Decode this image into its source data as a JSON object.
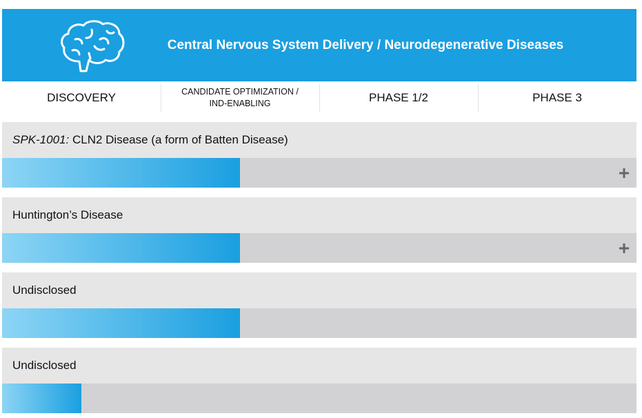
{
  "header": {
    "title": "Central Nervous System Delivery / Neurodegenerative Diseases"
  },
  "stages": [
    "DISCOVERY",
    "CANDIDATE OPTIMIZATION / IND-ENABLING",
    "PHASE 1/2",
    "PHASE 3"
  ],
  "programs": [
    {
      "code": "SPK-1001:",
      "name": "CLN2 Disease (a form of Batten Disease)"
    },
    {
      "name": "Huntington’s Disease"
    },
    {
      "name": "Undisclosed"
    },
    {
      "name": "Undisclosed"
    }
  ]
}
